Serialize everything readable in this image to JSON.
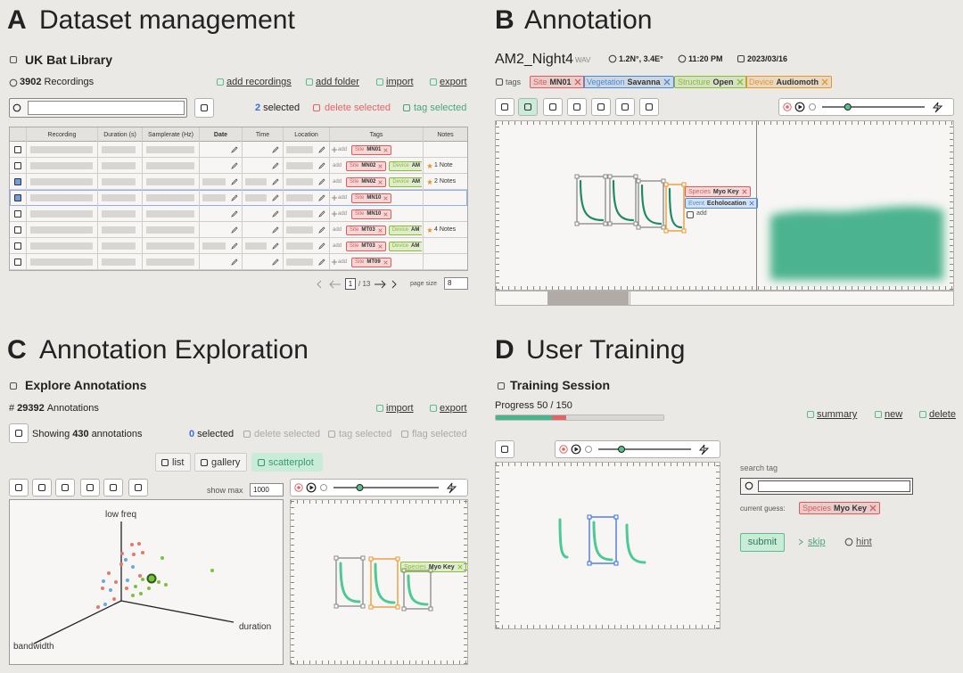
{
  "panel_a": {
    "letter": "A",
    "title": "Dataset management",
    "library": "UK Bat Library",
    "recording_count": 3902,
    "recording_label": "Recordings",
    "actions": [
      "add recordings",
      "add folder",
      "import",
      "export"
    ],
    "selected_count": 2,
    "selected_label": "selected",
    "delete_label": "delete selected",
    "tag_label": "tag selected",
    "columns": [
      "Recording",
      "Duration (s)",
      "Samplerate (Hz)",
      "Date",
      "Time",
      "Location",
      "Tags",
      "Notes"
    ],
    "add_label": "add",
    "rows": [
      {
        "checked": false,
        "tags": [
          {
            "key": "Site",
            "value": "MN01",
            "color": "#e05a5a"
          }
        ]
      },
      {
        "checked": false,
        "tags": [
          {
            "key": "Site",
            "value": "MN02",
            "color": "#e05a5a"
          },
          {
            "key": "Device",
            "value": "AM",
            "color": "#86bf2f"
          }
        ],
        "notes": "1 Note"
      },
      {
        "checked": true,
        "tags": [
          {
            "key": "Site",
            "value": "MN02",
            "color": "#e05a5a"
          },
          {
            "key": "Device",
            "value": "AM",
            "color": "#86bf2f"
          }
        ],
        "notes": "2 Notes"
      },
      {
        "checked": true,
        "tags": [
          {
            "key": "Site",
            "value": "MN10",
            "color": "#e05a5a"
          }
        ]
      },
      {
        "checked": false,
        "tags": [
          {
            "key": "Site",
            "value": "MN10",
            "color": "#e05a5a"
          }
        ]
      },
      {
        "checked": false,
        "tags": [
          {
            "key": "Site",
            "value": "MT03",
            "color": "#e05a5a"
          },
          {
            "key": "Device",
            "value": "AM",
            "color": "#86bf2f"
          }
        ],
        "notes": "4 Notes"
      },
      {
        "checked": false,
        "tags": [
          {
            "key": "Site",
            "value": "MT03",
            "color": "#e05a5a"
          },
          {
            "key": "Device",
            "value": "AM",
            "color": "#86bf2f"
          }
        ]
      },
      {
        "checked": false,
        "tags": [
          {
            "key": "Site",
            "value": "MT09",
            "color": "#e05a5a"
          }
        ]
      }
    ],
    "page": 1,
    "page_total": "/ 13",
    "page_size_label": "page size",
    "page_size": 8
  },
  "panel_b": {
    "letter": "B",
    "title": "Annotation",
    "file": "AM2_Night4",
    "format": "WAV",
    "location": "1.2N°, 3.4E°",
    "time": "11:20 PM",
    "date": "2023/03/16",
    "tags_label": "tags",
    "tags": [
      {
        "key": "Site",
        "value": "MN01",
        "color": "#e05a5a"
      },
      {
        "key": "Vegetation",
        "value": "Savanna",
        "color": "#4a8ad8"
      },
      {
        "key": "Structure",
        "value": "Open",
        "color": "#86bf2f"
      },
      {
        "key": "Device",
        "value": "Audiomoth",
        "color": "#e8962c"
      }
    ],
    "annotation_tags": [
      {
        "key": "Species",
        "value": "Myo Key",
        "color": "#e05a5a"
      },
      {
        "key": "Event",
        "value": "Echolocation",
        "color": "#4a8ad8"
      }
    ],
    "add_label": "add"
  },
  "panel_c": {
    "letter": "C",
    "title": "Annotation Exploration",
    "heading": "Explore Annotations",
    "count_prefix": "#",
    "annotation_count": 29392,
    "count_label": "Annotations",
    "actions": [
      "import",
      "export"
    ],
    "showing_label": "Showing",
    "showing_count": 430,
    "showing_suffix": "annotations",
    "selected_count": 0,
    "selected_label": "selected",
    "bulk_actions": [
      "delete selected",
      "tag selected",
      "flag selected"
    ],
    "views": [
      "list",
      "gallery",
      "scatterplot"
    ],
    "active_view": 2,
    "show_max_label": "show max",
    "show_max": 1000,
    "axes": {
      "y": "low freq",
      "x": "duration",
      "z": "bandwidth"
    },
    "tag": {
      "key": "Species",
      "value": "Myo Key",
      "color": "#86bf2f"
    }
  },
  "panel_d": {
    "letter": "D",
    "title": "User Training",
    "heading": "Training Session",
    "progress_text": "Progress 50 / 150",
    "progress": {
      "done": 50,
      "total": 150
    },
    "actions": [
      "summary",
      "new",
      "delete"
    ],
    "search_label": "search tag",
    "guess_label": "current guess:",
    "guess": {
      "key": "Species",
      "value": "Myo Key",
      "color": "#e05a5a"
    },
    "submit": "submit",
    "skip": "skip",
    "hint": "hint"
  }
}
